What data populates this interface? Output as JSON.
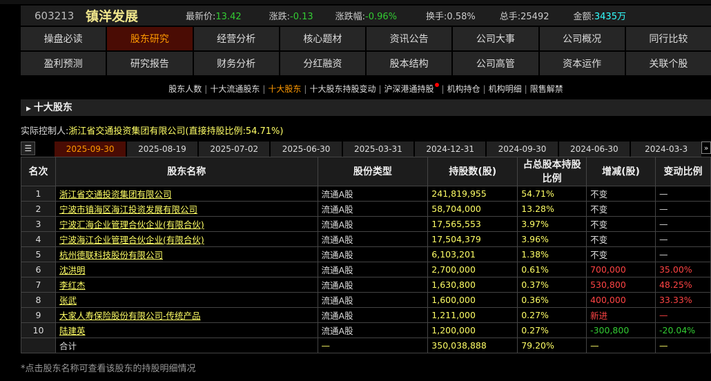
{
  "quote": {
    "code": "603213",
    "name": "镇洋发展",
    "price_label": "最新价:",
    "price": "13.42",
    "chg_label": "涨跌:",
    "chg": "-0.13",
    "pct_label": "涨跌幅:",
    "pct": "-0.96%",
    "turnover_label": "换手:",
    "turnover": "0.58%",
    "volume_label": "总手:",
    "volume": "25492",
    "amount_label": "金额:",
    "amount": "3435万"
  },
  "nav": {
    "row1": [
      "操盘必读",
      "股东研究",
      "经营分析",
      "核心题材",
      "资讯公告",
      "公司大事",
      "公司概况",
      "同行比较"
    ],
    "row2": [
      "盈利预测",
      "研究报告",
      "财务分析",
      "分红融资",
      "股本结构",
      "公司高管",
      "资本运作",
      "关联个股"
    ],
    "active": "股东研究"
  },
  "subnav": [
    "股东人数",
    "十大流通股东",
    "十大股东",
    "十大股东持股变动",
    "沪深港通持股",
    "机构持仓",
    "机构明细",
    "限售解禁"
  ],
  "subnav_active": "十大股东",
  "section_title": "十大股东",
  "controller": {
    "label": "实际控制人:",
    "value": "浙江省交通投资集团有限公司(直接持股比例:54.71%)"
  },
  "dates": [
    "2025-09-30",
    "2025-08-19",
    "2025-07-02",
    "2025-06-30",
    "2025-03-31",
    "2024-12-31",
    "2024-09-30",
    "2024-06-30",
    "2024-03-3"
  ],
  "active_date": "2025-09-30",
  "table": {
    "headers": [
      "名次",
      "股东名称",
      "股份类型",
      "持股数(股)",
      "占总股本持股比例",
      "增减(股)",
      "变动比例"
    ],
    "rows": [
      [
        "1",
        "浙江省交通投资集团有限公司",
        "流通A股",
        "241,819,955",
        "54.71%",
        "不变",
        "—"
      ],
      [
        "2",
        "宁波市镇海区海江投资发展有限公司",
        "流通A股",
        "58,704,000",
        "13.28%",
        "不变",
        "—"
      ],
      [
        "3",
        "宁波汇海企业管理合伙企业(有限合伙)",
        "流通A股",
        "17,565,553",
        "3.97%",
        "不变",
        "—"
      ],
      [
        "4",
        "宁波海江企业管理合伙企业(有限合伙)",
        "流通A股",
        "17,504,379",
        "3.96%",
        "不变",
        "—"
      ],
      [
        "5",
        "杭州德联科技股份有限公司",
        "流通A股",
        "6,103,201",
        "1.38%",
        "不变",
        "—"
      ],
      [
        "6",
        "沈洪明",
        "流通A股",
        "2,700,000",
        "0.61%",
        "700,000",
        "35.00%"
      ],
      [
        "7",
        "李红杰",
        "流通A股",
        "1,630,800",
        "0.37%",
        "530,800",
        "48.25%"
      ],
      [
        "8",
        "张武",
        "流通A股",
        "1,600,000",
        "0.36%",
        "400,000",
        "33.33%"
      ],
      [
        "9",
        "大家人寿保险股份有限公司-传统产品",
        "流通A股",
        "1,211,000",
        "0.27%",
        "新进",
        "—"
      ],
      [
        "10",
        "陆建英",
        "流通A股",
        "1,200,000",
        "0.27%",
        "-300,800",
        "-20.04%"
      ]
    ],
    "change_colors": [
      "#dddddd",
      "#dddddd",
      "#dddddd",
      "#dddddd",
      "#dddddd",
      "#ff4444",
      "#ff4444",
      "#ff4444",
      "#ff4444",
      "#33cc33"
    ],
    "total": [
      "",
      "合计",
      "—",
      "350,038,888",
      "79.20%",
      "—",
      "—"
    ]
  },
  "note": "*点击股东名称可查看该股东的持股明细情况",
  "colors": {
    "active_bg": "#4a0c04",
    "active_text": "#ff9900",
    "up": "#ff4444",
    "down": "#33cc33",
    "link": "#ffff66"
  }
}
